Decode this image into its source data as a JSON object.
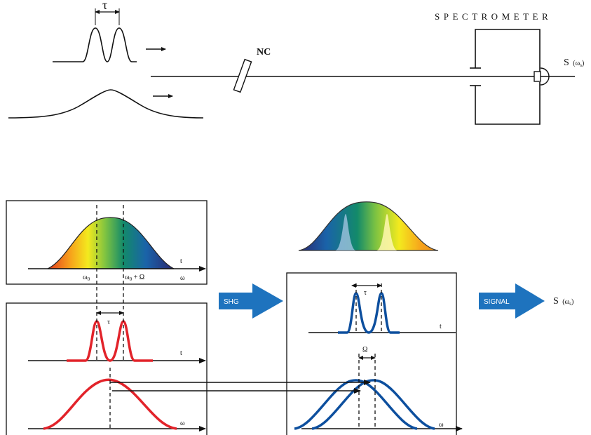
{
  "top": {
    "tau": "τ",
    "spectrometer": "SPECTROMETER",
    "nc": "NC",
    "s_label": "S",
    "s_arg": "(ω",
    "s_sub": "s",
    "s_close": ")"
  },
  "left_panel": {
    "t": "t",
    "omega": "ω",
    "omega0": "ω",
    "zero": "0",
    "omega0_plus": "ω",
    "plus_Omega": " + Ω"
  },
  "middle_left": {
    "tau": "τ",
    "t": "t",
    "omega": "ω"
  },
  "shg": {
    "label": "SHG",
    "color": "#1e73be"
  },
  "signal": {
    "label": "SIGNAL",
    "color": "#1e73be",
    "s": "S",
    "arg": "(ω",
    "sub": "s",
    "close": ")"
  },
  "right_panel": {
    "tau": "τ",
    "t": "t",
    "Omega": "Ω",
    "omega": "ω"
  },
  "colors": {
    "red": "#e2232a",
    "blue": "#0d4f9e",
    "black": "#111111"
  }
}
